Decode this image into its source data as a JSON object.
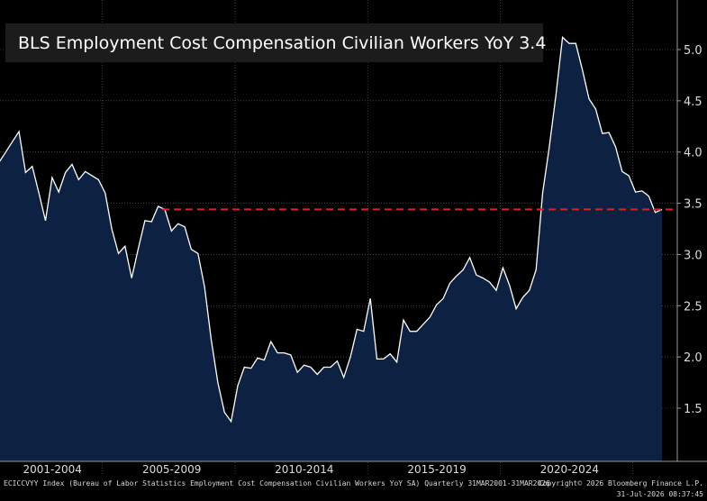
{
  "legend": {
    "label": "BLS Employment Cost Compensation Civilian Workers YoY 3.4",
    "swatch_color": "#ffffff"
  },
  "footer": {
    "left": "ECICCVYY Index (Bureau of Labor Statistics Employment Cost Compensation Civilian Workers YoY SA) Quarterly 31MAR2001-31MAR2026",
    "right": "Copyright© 2026 Bloomberg Finance L.P.",
    "timestamp": "31-Jul-2026 08:37:45"
  },
  "colors": {
    "background": "#000000",
    "area_fill": "#0d2142",
    "line": "#ffffff",
    "reference_line": "#e02020",
    "grid": "#6a6a6a"
  },
  "chart_data": {
    "type": "area",
    "title": "",
    "xlabel": "",
    "ylabel": "",
    "ylim": [
      1.0,
      5.4
    ],
    "y_ticks": [
      "1.5",
      "2.0",
      "2.5",
      "3.0",
      "3.5",
      "4.0",
      "4.5",
      "5.0"
    ],
    "x_period_labels": [
      "2001-2004",
      "2005-2009",
      "2010-2014",
      "2015-2019",
      "2020-2024"
    ],
    "reference_line": 3.44,
    "grid": true,
    "legend_position": "top-left",
    "series": [
      {
        "name": "BLS Employment Cost Compensation Civilian Workers YoY",
        "x": [
          "2001Q1",
          "2001Q2",
          "2001Q3",
          "2001Q4",
          "2002Q1",
          "2002Q2",
          "2002Q3",
          "2002Q4",
          "2003Q1",
          "2003Q2",
          "2003Q3",
          "2003Q4",
          "2004Q1",
          "2004Q2",
          "2004Q3",
          "2004Q4",
          "2005Q1",
          "2005Q2",
          "2005Q3",
          "2005Q4",
          "2006Q1",
          "2006Q2",
          "2006Q3",
          "2006Q4",
          "2007Q1",
          "2007Q2",
          "2007Q3",
          "2007Q4",
          "2008Q1",
          "2008Q2",
          "2008Q3",
          "2008Q4",
          "2009Q1",
          "2009Q2",
          "2009Q3",
          "2009Q4",
          "2010Q1",
          "2010Q2",
          "2010Q3",
          "2010Q4",
          "2011Q1",
          "2011Q2",
          "2011Q3",
          "2011Q4",
          "2012Q1",
          "2012Q2",
          "2012Q3",
          "2012Q4",
          "2013Q1",
          "2013Q2",
          "2013Q3",
          "2013Q4",
          "2014Q1",
          "2014Q2",
          "2014Q3",
          "2014Q4",
          "2015Q1",
          "2015Q2",
          "2015Q3",
          "2015Q4",
          "2016Q1",
          "2016Q2",
          "2016Q3",
          "2016Q4",
          "2017Q1",
          "2017Q2",
          "2017Q3",
          "2017Q4",
          "2018Q1",
          "2018Q2",
          "2018Q3",
          "2018Q4",
          "2019Q1",
          "2019Q2",
          "2019Q3",
          "2019Q4",
          "2020Q1",
          "2020Q2",
          "2020Q3",
          "2020Q4",
          "2021Q1",
          "2021Q2",
          "2021Q3",
          "2021Q4",
          "2022Q1",
          "2022Q2",
          "2022Q3",
          "2022Q4",
          "2023Q1",
          "2023Q2",
          "2023Q3",
          "2023Q4",
          "2024Q1",
          "2024Q2",
          "2024Q3",
          "2024Q4",
          "2025Q1",
          "2025Q2",
          "2025Q3",
          "2025Q4",
          "2026Q1"
        ],
        "values": [
          3.9,
          4.0,
          4.1,
          4.2,
          3.8,
          3.86,
          3.6,
          3.33,
          3.75,
          3.61,
          3.8,
          3.88,
          3.73,
          3.81,
          3.77,
          3.73,
          3.6,
          3.25,
          3.01,
          3.08,
          2.77,
          3.06,
          3.33,
          3.32,
          3.47,
          3.44,
          3.23,
          3.3,
          3.27,
          3.05,
          3.01,
          2.68,
          2.17,
          1.75,
          1.46,
          1.37,
          1.72,
          1.9,
          1.89,
          1.99,
          1.97,
          2.15,
          2.04,
          2.04,
          2.02,
          1.85,
          1.92,
          1.9,
          1.83,
          1.9,
          1.9,
          1.96,
          1.8,
          2.0,
          2.27,
          2.25,
          2.57,
          1.98,
          1.98,
          2.03,
          1.95,
          2.36,
          2.25,
          2.25,
          2.32,
          2.39,
          2.51,
          2.57,
          2.72,
          2.79,
          2.85,
          2.97,
          2.8,
          2.77,
          2.73,
          2.65,
          2.87,
          2.7,
          2.47,
          2.58,
          2.65,
          2.85,
          3.6,
          4.05,
          4.55,
          5.12,
          5.06,
          5.06,
          4.8,
          4.52,
          4.42,
          4.18,
          4.19,
          4.05,
          3.81,
          3.77,
          3.61,
          3.62,
          3.57,
          3.41,
          3.44
        ]
      }
    ]
  }
}
